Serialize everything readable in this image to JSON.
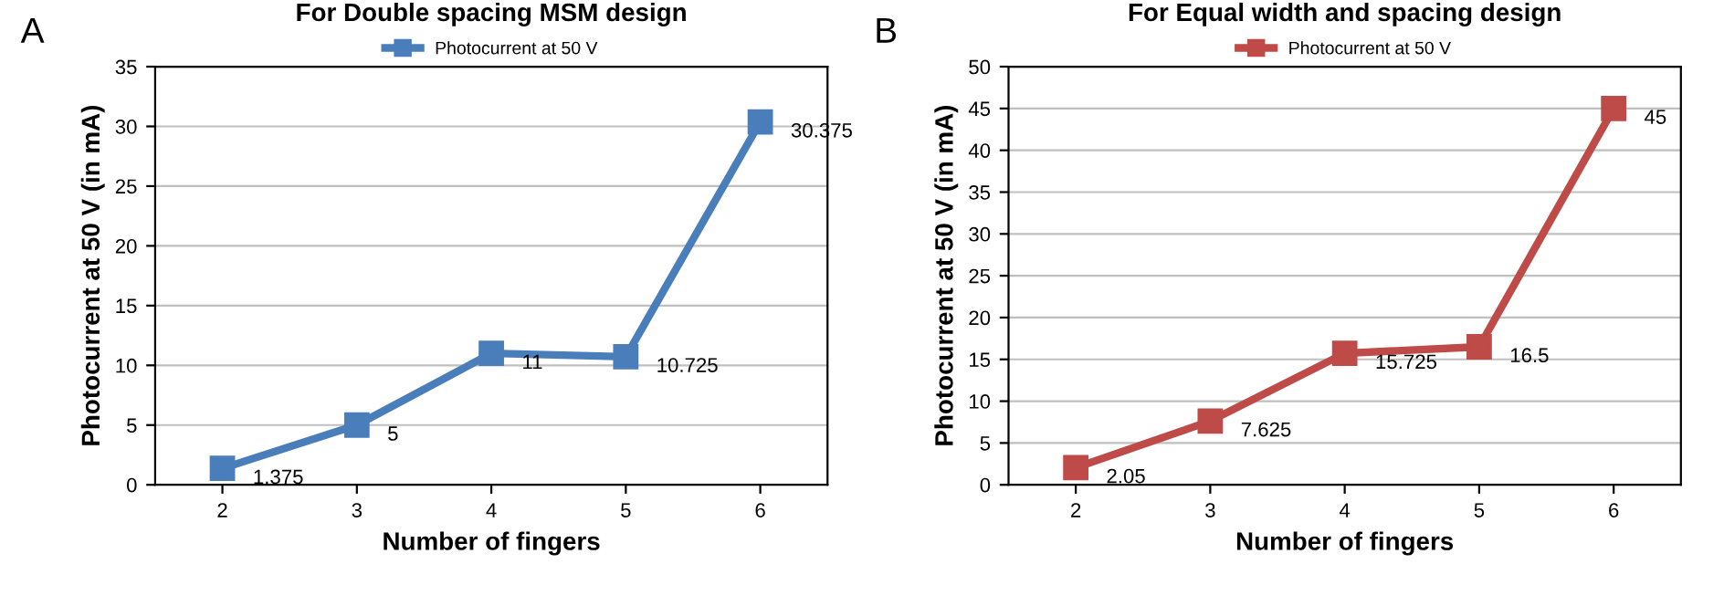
{
  "chart_data": [
    {
      "type": "line",
      "title": "For Double spacing MSM design",
      "xlabel": "Number of fingers",
      "ylabel": "Photocurrent at 50 V (in mA)",
      "categories": [
        "2",
        "3",
        "4",
        "5",
        "6"
      ],
      "series": [
        {
          "name": "Photocurrent at 50 V",
          "color": "#4a7ebb",
          "values": [
            1.375,
            5,
            11,
            10.725,
            30.375
          ]
        }
      ],
      "ylim": [
        0,
        35
      ],
      "yticks": [
        0,
        5,
        10,
        15,
        20,
        25,
        30,
        35
      ],
      "grid": "y",
      "legend": "top",
      "marker": "square",
      "line_style": "solid",
      "data_labels": true,
      "annotations": [
        "A"
      ]
    },
    {
      "type": "line",
      "title": "For Equal width and spacing design",
      "xlabel": "Number of fingers",
      "ylabel": "Photocurrent at 50 V (in mA)",
      "categories": [
        "2",
        "3",
        "4",
        "5",
        "6"
      ],
      "series": [
        {
          "name": "Photocurrent at 50 V",
          "color": "#be4b48",
          "values": [
            2.05,
            7.625,
            15.725,
            16.5,
            45
          ]
        }
      ],
      "ylim": [
        0,
        50
      ],
      "yticks": [
        0,
        5,
        10,
        15,
        20,
        25,
        30,
        35,
        40,
        45,
        50
      ],
      "grid": "y",
      "legend": "top",
      "marker": "square",
      "line_style": "solid",
      "data_labels": true,
      "annotations": [
        "B"
      ]
    }
  ]
}
